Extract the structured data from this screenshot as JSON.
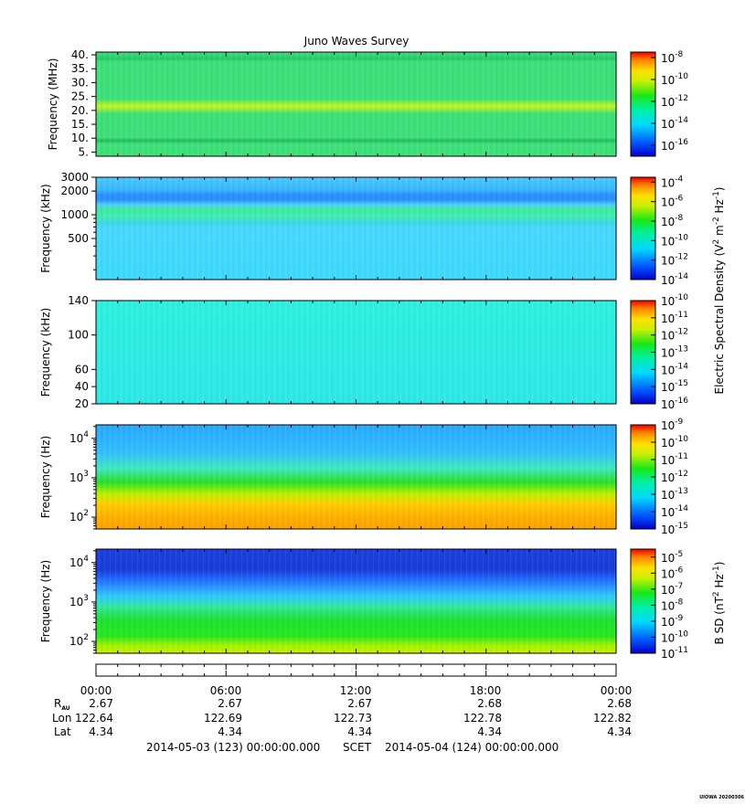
{
  "title": "Juno Waves Survey",
  "chart_data": {
    "type": "heatmap",
    "title": "Juno Waves Survey",
    "panels": [
      {
        "ylabel": "Frequency (MHz)",
        "y_scale": "linear",
        "ylim": [
          3.5,
          41
        ],
        "yticks": [
          {
            "value": 40,
            "label": "40."
          },
          {
            "value": 35,
            "label": "35."
          },
          {
            "value": 30,
            "label": "30."
          },
          {
            "value": 25,
            "label": "25."
          },
          {
            "value": 20,
            "label": "20."
          },
          {
            "value": 15,
            "label": "15."
          },
          {
            "value": 10,
            "label": "10."
          },
          {
            "value": 5,
            "label": "5."
          }
        ],
        "colorbar_exponents": [
          -8,
          -10,
          -12,
          -14,
          -16
        ],
        "colorbar_range": [
          -17,
          -7.5
        ],
        "features": "uniform green background with a bright yellow-green band near 21 MHz and a darker band near 9 MHz"
      },
      {
        "ylabel": "Frequency (kHz)",
        "y_scale": "log",
        "ylim": [
          150,
          3000
        ],
        "yticks": [
          {
            "value": 3000,
            "label": "3000"
          },
          {
            "value": 2000,
            "label": "2000"
          },
          {
            "value": 1000,
            "label": "1000"
          },
          {
            "value": 500,
            "label": "500"
          }
        ],
        "colorbar_exponents": [
          -4,
          -6,
          -8,
          -10,
          -12,
          -14
        ],
        "colorbar_range": [
          -14,
          -3.5
        ],
        "features": "cyan/light-blue background with a blue band near 1700 kHz and a green band near 1000 kHz"
      },
      {
        "ylabel": "Frequency (kHz)",
        "y_scale": "linear",
        "ylim": [
          20,
          140
        ],
        "yticks": [
          {
            "value": 140,
            "label": "140"
          },
          {
            "value": 100,
            "label": "100"
          },
          {
            "value": 60,
            "label": "60"
          },
          {
            "value": 40,
            "label": "40"
          },
          {
            "value": 20,
            "label": "20"
          }
        ],
        "colorbar_exponents": [
          -10,
          -11,
          -12,
          -13,
          -14,
          -15,
          -16
        ],
        "colorbar_range": [
          -16,
          -10
        ],
        "features": "nearly uniform cyan"
      },
      {
        "ylabel": "Frequency (Hz)",
        "y_scale": "log",
        "ylim": [
          50,
          22000
        ],
        "yticks": [
          {
            "value": 10000,
            "label": "10",
            "exp": "4"
          },
          {
            "value": 1000,
            "label": "10",
            "exp": "3"
          },
          {
            "value": 100,
            "label": "10",
            "exp": "2"
          }
        ],
        "colorbar_exponents": [
          -9,
          -10,
          -11,
          -12,
          -13,
          -14,
          -15
        ],
        "colorbar_range": [
          -15,
          -9
        ],
        "features": "light blue at top fading to green and yellow-orange at low frequencies"
      },
      {
        "ylabel": "Frequency (Hz)",
        "y_scale": "log",
        "ylim": [
          50,
          22000
        ],
        "yticks": [
          {
            "value": 10000,
            "label": "10",
            "exp": "4"
          },
          {
            "value": 1000,
            "label": "10",
            "exp": "3"
          },
          {
            "value": 100,
            "label": "10",
            "exp": "2"
          }
        ],
        "colorbar_exponents": [
          -5,
          -6,
          -7,
          -8,
          -9,
          -10,
          -11
        ],
        "colorbar_range": [
          -11,
          -4.5
        ],
        "features": "dark blue at top, blue/cyan in the middle, green and yellow-green at low frequencies"
      }
    ],
    "colorbar_labels": [
      {
        "text": "Electric Spectral Density (V",
        "sup1": "2",
        "mid": " m",
        "sup2": "-2",
        "mid2": " Hz",
        "sup3": "-1",
        "end": ")"
      },
      {
        "text": "B SD (nT",
        "sup1": "2",
        "mid": " Hz",
        "sup2": "-1",
        "end": ")"
      }
    ],
    "x_ticks": [
      "00:00",
      "06:00",
      "12:00",
      "18:00",
      "00:00"
    ],
    "ephemeris": {
      "labels": [
        "R",
        "Lon",
        "Lat"
      ],
      "r_sub": "AU",
      "rows": {
        "R": [
          "2.67",
          "2.67",
          "2.67",
          "2.68",
          "2.68"
        ],
        "Lon": [
          "122.64",
          "122.69",
          "122.73",
          "122.78",
          "122.82"
        ],
        "Lat": [
          "4.34",
          "4.34",
          "4.34",
          "4.34",
          "4.34"
        ]
      }
    },
    "time_range": {
      "start": "2014-05-03 (123) 00:00:00.000",
      "label": "SCET",
      "end": "2014-05-04 (124) 00:00:00.000"
    },
    "credit": "UIOWA 20200306"
  }
}
